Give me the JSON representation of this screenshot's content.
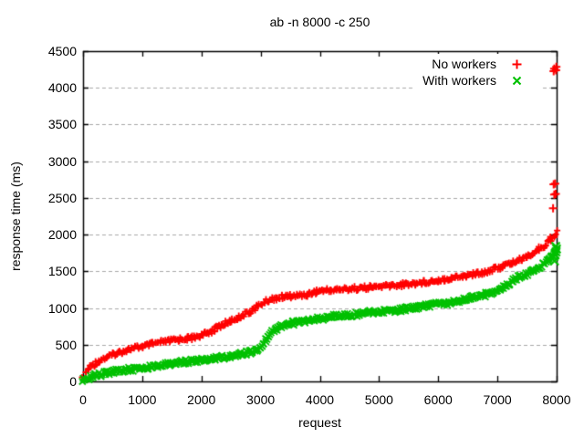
{
  "chart_data": {
    "type": "scatter",
    "title": "ab -n 8000 -c 250",
    "xlabel": "request",
    "ylabel": "response time (ms)",
    "xlim": [
      0,
      8000
    ],
    "ylim": [
      0,
      4500
    ],
    "xticks": [
      0,
      1000,
      2000,
      3000,
      4000,
      5000,
      6000,
      7000,
      8000
    ],
    "yticks": [
      0,
      500,
      1000,
      1500,
      2000,
      2500,
      3000,
      3500,
      4000,
      4500
    ],
    "grid": {
      "horizontal": true,
      "vertical": false,
      "style": "dashed",
      "color": "#a8a8a8"
    },
    "legend_position": "top-right",
    "frame_color": "#000000",
    "series": [
      {
        "name": "No workers",
        "marker": "plus",
        "color": "#ff0000",
        "curve_points": [
          [
            0,
            25
          ],
          [
            60,
            140
          ],
          [
            150,
            215
          ],
          [
            250,
            270
          ],
          [
            350,
            310
          ],
          [
            500,
            365
          ],
          [
            650,
            405
          ],
          [
            800,
            440
          ],
          [
            1000,
            478
          ],
          [
            1200,
            512
          ],
          [
            1400,
            543
          ],
          [
            1550,
            562
          ],
          [
            1700,
            580
          ],
          [
            1850,
            595
          ],
          [
            2000,
            628
          ],
          [
            2150,
            680
          ],
          [
            2300,
            745
          ],
          [
            2500,
            825
          ],
          [
            2700,
            900
          ],
          [
            2850,
            960
          ],
          [
            3000,
            1045
          ],
          [
            3100,
            1095
          ],
          [
            3200,
            1125
          ],
          [
            3350,
            1148
          ],
          [
            3550,
            1165
          ],
          [
            3750,
            1180
          ],
          [
            3850,
            1200
          ],
          [
            3950,
            1228
          ],
          [
            4100,
            1240
          ],
          [
            4400,
            1256
          ],
          [
            4700,
            1272
          ],
          [
            5000,
            1292
          ],
          [
            5300,
            1312
          ],
          [
            5600,
            1335
          ],
          [
            5900,
            1368
          ],
          [
            6200,
            1405
          ],
          [
            6500,
            1445
          ],
          [
            6800,
            1495
          ],
          [
            7000,
            1545
          ],
          [
            7200,
            1600
          ],
          [
            7400,
            1662
          ],
          [
            7600,
            1745
          ],
          [
            7750,
            1830
          ],
          [
            7870,
            1910
          ],
          [
            7950,
            1975
          ],
          [
            8000,
            2040
          ]
        ],
        "outlier_points": [
          [
            7940,
            2360
          ],
          [
            7960,
            2545
          ],
          [
            7985,
            2555
          ],
          [
            7950,
            2685
          ],
          [
            7975,
            2695
          ],
          [
            7950,
            4225
          ],
          [
            7990,
            4240
          ],
          [
            7960,
            4262
          ],
          [
            7995,
            4285
          ]
        ]
      },
      {
        "name": "With workers",
        "marker": "cross",
        "color": "#00c000",
        "curve_points": [
          [
            0,
            25
          ],
          [
            200,
            75
          ],
          [
            400,
            115
          ],
          [
            600,
            145
          ],
          [
            800,
            165
          ],
          [
            1000,
            185
          ],
          [
            1200,
            210
          ],
          [
            1400,
            235
          ],
          [
            1600,
            255
          ],
          [
            1800,
            270
          ],
          [
            2000,
            288
          ],
          [
            2200,
            310
          ],
          [
            2400,
            335
          ],
          [
            2600,
            365
          ],
          [
            2750,
            385
          ],
          [
            2900,
            420
          ],
          [
            2980,
            450
          ],
          [
            3050,
            520
          ],
          [
            3120,
            590
          ],
          [
            3200,
            680
          ],
          [
            3300,
            730
          ],
          [
            3400,
            760
          ],
          [
            3500,
            788
          ],
          [
            3650,
            812
          ],
          [
            3800,
            832
          ],
          [
            4000,
            858
          ],
          [
            4250,
            885
          ],
          [
            4500,
            908
          ],
          [
            4750,
            928
          ],
          [
            5000,
            948
          ],
          [
            5250,
            968
          ],
          [
            5500,
            990
          ],
          [
            5750,
            1018
          ],
          [
            6000,
            1050
          ],
          [
            6250,
            1085
          ],
          [
            6500,
            1125
          ],
          [
            6700,
            1160
          ],
          [
            6850,
            1195
          ],
          [
            7000,
            1240
          ],
          [
            7100,
            1285
          ],
          [
            7200,
            1335
          ],
          [
            7300,
            1390
          ],
          [
            7400,
            1438
          ],
          [
            7500,
            1470
          ],
          [
            7600,
            1505
          ],
          [
            7700,
            1550
          ],
          [
            7800,
            1610
          ],
          [
            7900,
            1680
          ],
          [
            8000,
            1780
          ]
        ],
        "outlier_points": [
          [
            7955,
            1700
          ],
          [
            7975,
            1725
          ],
          [
            7990,
            1765
          ],
          [
            7998,
            1805
          ],
          [
            7985,
            1840
          ],
          [
            7965,
            1640
          ]
        ]
      }
    ]
  }
}
